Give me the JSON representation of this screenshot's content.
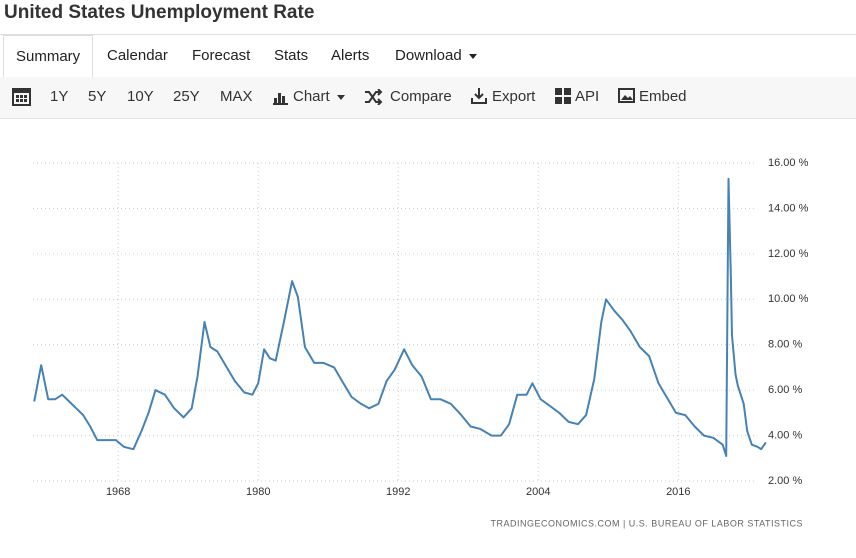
{
  "header": {
    "title": "United States Unemployment Rate"
  },
  "tabs": [
    "Summary",
    "Calendar",
    "Forecast",
    "Stats",
    "Alerts",
    "Download"
  ],
  "toolbar": {
    "ranges": [
      "1Y",
      "5Y",
      "10Y",
      "25Y",
      "MAX"
    ],
    "tools": [
      "Chart",
      "Compare",
      "Export",
      "API",
      "Embed"
    ]
  },
  "chart_data": {
    "type": "line",
    "source": "TRADINGECONOMICS.COM | U.S. BUREAU OF LABOR STATISTICS",
    "color": "#4682b4",
    "grid": true,
    "x": [
      1960.8,
      1961.4,
      1962.0,
      1962.6,
      1963.2,
      1963.8,
      1964.4,
      1965.0,
      1965.6,
      1966.2,
      1967.0,
      1967.8,
      1968.5,
      1969.3,
      1970.0,
      1970.6,
      1971.2,
      1972.0,
      1972.8,
      1973.6,
      1974.3,
      1974.8,
      1975.4,
      1975.9,
      1976.5,
      1977.2,
      1978.0,
      1978.8,
      1979.5,
      1980.0,
      1980.5,
      1981.0,
      1981.5,
      1982.2,
      1982.9,
      1983.4,
      1984.0,
      1984.8,
      1985.6,
      1986.5,
      1987.3,
      1988.0,
      1988.8,
      1989.5,
      1990.3,
      1991.0,
      1991.7,
      1992.5,
      1993.2,
      1994.0,
      1994.8,
      1995.6,
      1996.5,
      1997.4,
      1998.2,
      1999.0,
      2000.0,
      2000.8,
      2001.5,
      2002.2,
      2003.0,
      2003.5,
      2004.2,
      2005.0,
      2005.8,
      2006.6,
      2007.4,
      2008.1,
      2008.8,
      2009.4,
      2009.8,
      2010.5,
      2011.2,
      2011.9,
      2012.7,
      2013.5,
      2014.3,
      2015.0,
      2015.8,
      2016.6,
      2017.4,
      2018.2,
      2019.0,
      2019.8,
      2020.1,
      2020.3,
      2020.5,
      2020.6,
      2020.9,
      2021.1,
      2021.6,
      2021.9,
      2022.3,
      2022.8,
      2023.1,
      2023.5
    ],
    "values": [
      5.5,
      7.1,
      5.6,
      5.6,
      5.8,
      5.5,
      5.2,
      4.9,
      4.4,
      3.8,
      3.8,
      3.8,
      3.5,
      3.4,
      4.2,
      5.0,
      6.0,
      5.8,
      5.2,
      4.8,
      5.2,
      6.6,
      9.0,
      7.9,
      7.7,
      7.1,
      6.4,
      5.9,
      5.8,
      6.3,
      7.8,
      7.4,
      7.3,
      9.0,
      10.8,
      10.1,
      7.9,
      7.2,
      7.2,
      7.0,
      6.3,
      5.7,
      5.4,
      5.2,
      5.4,
      6.4,
      6.9,
      7.8,
      7.1,
      6.6,
      5.6,
      5.6,
      5.4,
      4.9,
      4.4,
      4.3,
      4.0,
      4.0,
      4.5,
      5.8,
      5.8,
      6.3,
      5.6,
      5.3,
      5.0,
      4.6,
      4.5,
      4.9,
      6.5,
      9.0,
      10.0,
      9.5,
      9.1,
      8.6,
      7.9,
      7.5,
      6.3,
      5.7,
      5.0,
      4.9,
      4.4,
      4.0,
      3.9,
      3.6,
      3.1,
      15.3,
      11.1,
      8.4,
      6.7,
      6.2,
      5.4,
      4.2,
      3.6,
      3.5,
      3.4,
      3.7
    ],
    "xlim": [
      1960.7,
      2023.6
    ],
    "xticks": [
      1968,
      1980,
      1992,
      2004,
      2016
    ],
    "ylim": [
      2,
      16
    ],
    "yticks": [
      {
        "value": 2,
        "label": "2.00 %"
      },
      {
        "value": 4,
        "label": "4.00 %"
      },
      {
        "value": 6,
        "label": "6.00 %"
      },
      {
        "value": 8,
        "label": "8.00 %"
      },
      {
        "value": 10,
        "label": "10.00 %"
      },
      {
        "value": 12,
        "label": "12.00 %"
      },
      {
        "value": 14,
        "label": "14.00 %"
      },
      {
        "value": 16,
        "label": "16.00 %"
      }
    ]
  }
}
